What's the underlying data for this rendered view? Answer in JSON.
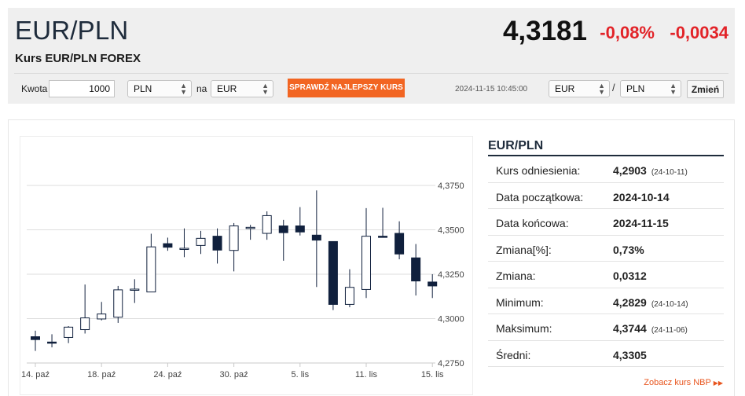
{
  "header": {
    "pair": "EUR/PLN",
    "subtitle": "Kurs EUR/PLN FOREX",
    "rate": "4,3181",
    "change_pct": "-0,08%",
    "change_abs": "-0,0034",
    "change_color": "#e22328"
  },
  "converter": {
    "amount_label": "Kwota",
    "amount_value": "1000",
    "from_currency": "PLN",
    "to_label": "na",
    "to_currency": "EUR",
    "cta_label": "SPRAWDŹ NAJLEPSZY KURS",
    "cta_color": "#f26522"
  },
  "pair_selector": {
    "timestamp": "2024-11-15 10:45:00",
    "base": "EUR",
    "separator": "/",
    "quote": "PLN",
    "button_label": "Zmień"
  },
  "stats": {
    "title": "EUR/PLN",
    "rows": [
      {
        "label": "Kurs odniesienia:",
        "value": "4,2903",
        "date": "(24-10-11)"
      },
      {
        "label": "Data początkowa:",
        "value": "2024-10-14",
        "date": ""
      },
      {
        "label": "Data końcowa:",
        "value": "2024-11-15",
        "date": ""
      },
      {
        "label": "Zmiana[%]:",
        "value": "0,73%",
        "date": ""
      },
      {
        "label": "Zmiana:",
        "value": "0,0312",
        "date": ""
      },
      {
        "label": "Minimum:",
        "value": "4,2829",
        "date": "(24-10-14)"
      },
      {
        "label": "Maksimum:",
        "value": "4,3744",
        "date": "(24-11-06)"
      },
      {
        "label": "Średni:",
        "value": "4,3305",
        "date": ""
      }
    ],
    "nbp_link": "Zobacz kurs NBP"
  },
  "chart_data": {
    "type": "candlestick",
    "y_ticks": [
      "4,3750",
      "4,3500",
      "4,3250",
      "4,3000",
      "4,2750"
    ],
    "y_tick_values": [
      4.375,
      4.35,
      4.325,
      4.3,
      4.275
    ],
    "ylim": [
      4.275,
      4.375
    ],
    "x_ticks": [
      {
        "label": "14. paź",
        "index": 0
      },
      {
        "label": "18. paź",
        "index": 4
      },
      {
        "label": "24. paź",
        "index": 8
      },
      {
        "label": "30. paź",
        "index": 12
      },
      {
        "label": "5. lis",
        "index": 16
      },
      {
        "label": "11. lis",
        "index": 20
      },
      {
        "label": "15. lis",
        "index": 24
      }
    ],
    "up_color": "#ffffff",
    "down_color": "#10203d",
    "grid": true,
    "candles": [
      {
        "o": 4.2898,
        "h": 4.2932,
        "l": 4.2818,
        "c": 4.2882
      },
      {
        "o": 4.2868,
        "h": 4.2912,
        "l": 4.2838,
        "c": 4.2866
      },
      {
        "o": 4.2894,
        "h": 4.2958,
        "l": 4.2862,
        "c": 4.2952
      },
      {
        "o": 4.2938,
        "h": 4.3192,
        "l": 4.2916,
        "c": 4.3004
      },
      {
        "o": 4.2998,
        "h": 4.3094,
        "l": 4.299,
        "c": 4.3026
      },
      {
        "o": 4.3008,
        "h": 4.3184,
        "l": 4.2976,
        "c": 4.3162
      },
      {
        "o": 4.3166,
        "h": 4.3222,
        "l": 4.3088,
        "c": 4.3166
      },
      {
        "o": 4.315,
        "h": 4.3478,
        "l": 4.315,
        "c": 4.3404
      },
      {
        "o": 4.3422,
        "h": 4.3456,
        "l": 4.3382,
        "c": 4.3402
      },
      {
        "o": 4.3396,
        "h": 4.3508,
        "l": 4.3346,
        "c": 4.3396
      },
      {
        "o": 4.3412,
        "h": 4.3494,
        "l": 4.3364,
        "c": 4.3452
      },
      {
        "o": 4.3464,
        "h": 4.3508,
        "l": 4.331,
        "c": 4.3386
      },
      {
        "o": 4.3384,
        "h": 4.3538,
        "l": 4.3266,
        "c": 4.3522
      },
      {
        "o": 4.3514,
        "h": 4.3528,
        "l": 4.3444,
        "c": 4.3514
      },
      {
        "o": 4.348,
        "h": 4.3604,
        "l": 4.3444,
        "c": 4.358
      },
      {
        "o": 4.3522,
        "h": 4.3556,
        "l": 4.3326,
        "c": 4.3484
      },
      {
        "o": 4.3522,
        "h": 4.3628,
        "l": 4.3468,
        "c": 4.3488
      },
      {
        "o": 4.347,
        "h": 4.3722,
        "l": 4.3178,
        "c": 4.3442
      },
      {
        "o": 4.3434,
        "h": 4.3434,
        "l": 4.3048,
        "c": 4.308
      },
      {
        "o": 4.308,
        "h": 4.3278,
        "l": 4.3064,
        "c": 4.3176
      },
      {
        "o": 4.3164,
        "h": 4.3622,
        "l": 4.3116,
        "c": 4.3464
      },
      {
        "o": 4.3464,
        "h": 4.3624,
        "l": 4.3458,
        "c": 4.346
      },
      {
        "o": 4.348,
        "h": 4.3548,
        "l": 4.3334,
        "c": 4.3364
      },
      {
        "o": 4.3342,
        "h": 4.342,
        "l": 4.313,
        "c": 4.3212
      },
      {
        "o": 4.3206,
        "h": 4.325,
        "l": 4.3116,
        "c": 4.3184
      }
    ]
  }
}
